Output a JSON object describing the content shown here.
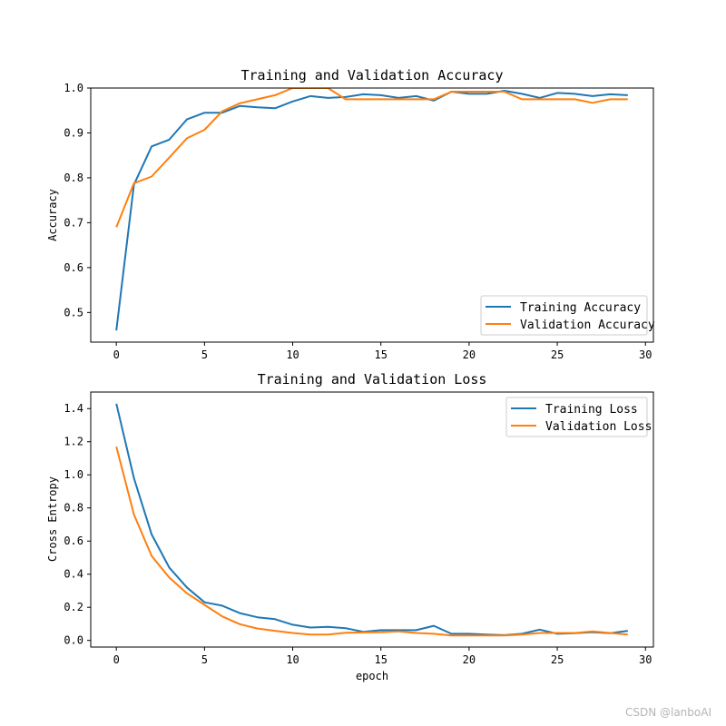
{
  "chart_data": [
    {
      "type": "line",
      "title": "Training and Validation Accuracy",
      "xlabel": "",
      "ylabel": "Accuracy",
      "xlim": [
        -1.45,
        30.45
      ],
      "ylim": [
        0.434,
        1.0
      ],
      "xticks": [
        0,
        5,
        10,
        15,
        20,
        25,
        30
      ],
      "yticks": [
        0.5,
        0.6,
        0.7,
        0.8,
        0.9,
        1.0
      ],
      "ytick_labels": [
        "0.5",
        "0.6",
        "0.7",
        "0.8",
        "0.9",
        "1.0"
      ],
      "grid": false,
      "legend_position": "lower-right",
      "x": [
        0,
        1,
        2,
        3,
        4,
        5,
        6,
        7,
        8,
        9,
        10,
        11,
        12,
        13,
        14,
        15,
        16,
        17,
        18,
        19,
        20,
        21,
        22,
        23,
        24,
        25,
        26,
        27,
        28,
        29
      ],
      "series": [
        {
          "name": "Training Accuracy",
          "color": "#1f77b4",
          "values": [
            0.46,
            0.785,
            0.87,
            0.885,
            0.93,
            0.945,
            0.945,
            0.96,
            0.957,
            0.955,
            0.97,
            0.982,
            0.978,
            0.98,
            0.986,
            0.984,
            0.978,
            0.982,
            0.972,
            0.992,
            0.987,
            0.987,
            0.994,
            0.987,
            0.978,
            0.989,
            0.987,
            0.982,
            0.986,
            0.984
          ]
        },
        {
          "name": "Validation Accuracy",
          "color": "#ff7f0e",
          "values": [
            0.69,
            0.788,
            0.803,
            0.845,
            0.888,
            0.907,
            0.948,
            0.966,
            0.975,
            0.984,
            1.0,
            1.0,
            1.0,
            0.975,
            0.975,
            0.975,
            0.975,
            0.975,
            0.975,
            0.992,
            0.992,
            0.992,
            0.992,
            0.975,
            0.975,
            0.975,
            0.975,
            0.967,
            0.975,
            0.975
          ]
        }
      ]
    },
    {
      "type": "line",
      "title": "Training and Validation Loss",
      "xlabel": "epoch",
      "ylabel": "Cross Entropy",
      "xlim": [
        -1.45,
        30.45
      ],
      "ylim": [
        -0.04,
        1.5
      ],
      "xticks": [
        0,
        5,
        10,
        15,
        20,
        25,
        30
      ],
      "yticks": [
        0.0,
        0.2,
        0.4,
        0.6,
        0.8,
        1.0,
        1.2,
        1.4
      ],
      "ytick_labels": [
        "0.0",
        "0.2",
        "0.4",
        "0.6",
        "0.8",
        "1.0",
        "1.2",
        "1.4"
      ],
      "grid": false,
      "legend_position": "upper-right",
      "x": [
        0,
        1,
        2,
        3,
        4,
        5,
        6,
        7,
        8,
        9,
        10,
        11,
        12,
        13,
        14,
        15,
        16,
        17,
        18,
        19,
        20,
        21,
        22,
        23,
        24,
        25,
        26,
        27,
        28,
        29
      ],
      "series": [
        {
          "name": "Training Loss",
          "color": "#1f77b4",
          "values": [
            1.43,
            0.98,
            0.64,
            0.44,
            0.32,
            0.23,
            0.21,
            0.165,
            0.14,
            0.128,
            0.095,
            0.078,
            0.082,
            0.074,
            0.052,
            0.062,
            0.062,
            0.062,
            0.088,
            0.04,
            0.04,
            0.035,
            0.032,
            0.04,
            0.065,
            0.04,
            0.044,
            0.05,
            0.044,
            0.058
          ]
        },
        {
          "name": "Validation Loss",
          "color": "#ff7f0e",
          "values": [
            1.17,
            0.76,
            0.51,
            0.38,
            0.285,
            0.215,
            0.145,
            0.098,
            0.072,
            0.058,
            0.045,
            0.035,
            0.035,
            0.046,
            0.048,
            0.05,
            0.054,
            0.045,
            0.04,
            0.03,
            0.03,
            0.03,
            0.03,
            0.035,
            0.045,
            0.045,
            0.045,
            0.055,
            0.045,
            0.035
          ]
        }
      ]
    }
  ],
  "watermark": "CSDN @lanboAI"
}
